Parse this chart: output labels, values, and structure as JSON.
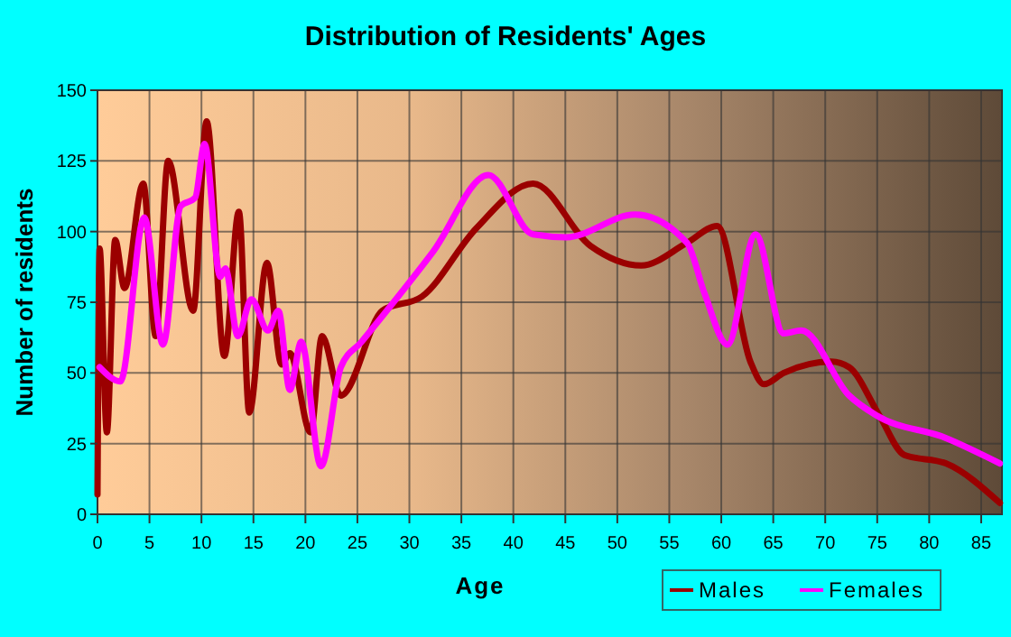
{
  "chart_data": {
    "type": "line",
    "title": "Distribution of Residents' Ages",
    "xlabel": "Age",
    "ylabel": "Number of residents",
    "xlim": [
      0,
      87
    ],
    "ylim": [
      0,
      150
    ],
    "xticks": [
      0,
      5,
      10,
      15,
      20,
      25,
      30,
      35,
      40,
      45,
      50,
      55,
      60,
      65,
      70,
      75,
      80,
      85
    ],
    "yticks": [
      0,
      25,
      50,
      75,
      100,
      125,
      150
    ],
    "grid": true,
    "legend": "bottom right",
    "line_style": "solid",
    "marker": "none",
    "series": [
      {
        "name": "Males",
        "color": "#9b0000",
        "x": [
          0,
          0.2,
          0.9,
          1.7,
          2.6,
          4.4,
          5.6,
          6.8,
          9.2,
          10.5,
          12.2,
          13.6,
          14.6,
          16.3,
          17.7,
          18.5,
          20.5,
          21.6,
          23.4,
          27.4,
          31.2,
          36.4,
          41.9,
          47.4,
          52.3,
          56.7,
          59.6,
          62.8,
          64.1,
          66,
          70.6,
          72.3,
          75.2,
          77.6,
          81.6,
          86.8
        ],
        "values": [
          7,
          94,
          29,
          97,
          80,
          117,
          63,
          125,
          72,
          139,
          56,
          107,
          36,
          89,
          53,
          57,
          29,
          63,
          42,
          72,
          77,
          101,
          117,
          95,
          88,
          96,
          102,
          54,
          46,
          50,
          54,
          52,
          35,
          21,
          18,
          4
        ]
      },
      {
        "name": "Females",
        "color": "#ff00ff",
        "x": [
          0.2,
          2.2,
          4.5,
          6.3,
          8,
          9.4,
          10.3,
          11.8,
          12.3,
          13.5,
          14.8,
          16.4,
          17.4,
          18.5,
          19.6,
          21.5,
          23.4,
          25.4,
          32.3,
          37.6,
          41.9,
          45.1,
          51.7,
          56.7,
          58.4,
          60.6,
          63.3,
          66,
          67.7,
          72.3,
          74.9,
          81.6,
          86.8
        ],
        "values": [
          52,
          47,
          105,
          60,
          109,
          112,
          131,
          84,
          87,
          63,
          76,
          65,
          72,
          44,
          61,
          17,
          52,
          61,
          93,
          120,
          99,
          98,
          106,
          96,
          78,
          60,
          99,
          64,
          65,
          42,
          35,
          27,
          18
        ]
      }
    ]
  }
}
